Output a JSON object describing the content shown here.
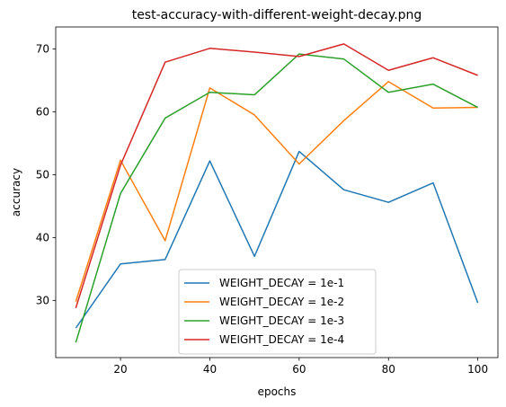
{
  "chart_data": {
    "type": "line",
    "title": "test-accuracy-with-different-weight-decay.png",
    "xlabel": "epochs",
    "ylabel": "accuracy",
    "x": [
      10,
      20,
      30,
      40,
      50,
      60,
      70,
      80,
      90,
      100
    ],
    "xlim": [
      5.5,
      104.5
    ],
    "ylim": [
      20.9,
      73.5
    ],
    "xticks": [
      20,
      40,
      60,
      80,
      100
    ],
    "yticks": [
      30,
      40,
      50,
      60,
      70
    ],
    "grid": false,
    "legend_position": "bottom-center",
    "series": [
      {
        "name": "WEIGHT_DECAY = 1e-1",
        "color": "#1f77b4",
        "values": [
          25.6,
          35.8,
          36.5,
          52.2,
          37.0,
          53.7,
          47.6,
          45.6,
          48.7,
          29.6
        ]
      },
      {
        "name": "WEIGHT_DECAY = 1e-2",
        "color": "#ff7f0e",
        "values": [
          29.8,
          52.3,
          39.5,
          63.8,
          59.5,
          51.7,
          58.6,
          64.8,
          60.6,
          60.7
        ]
      },
      {
        "name": "WEIGHT_DECAY = 1e-3",
        "color": "#2ca02c",
        "values": [
          23.3,
          47.0,
          59.0,
          63.1,
          62.7,
          69.2,
          68.4,
          63.1,
          64.4,
          60.7
        ]
      },
      {
        "name": "WEIGHT_DECAY = 1e-4",
        "color": "#d62728",
        "values": [
          28.8,
          51.5,
          67.9,
          70.1,
          69.5,
          68.8,
          70.8,
          66.6,
          68.6,
          65.8
        ]
      }
    ]
  }
}
